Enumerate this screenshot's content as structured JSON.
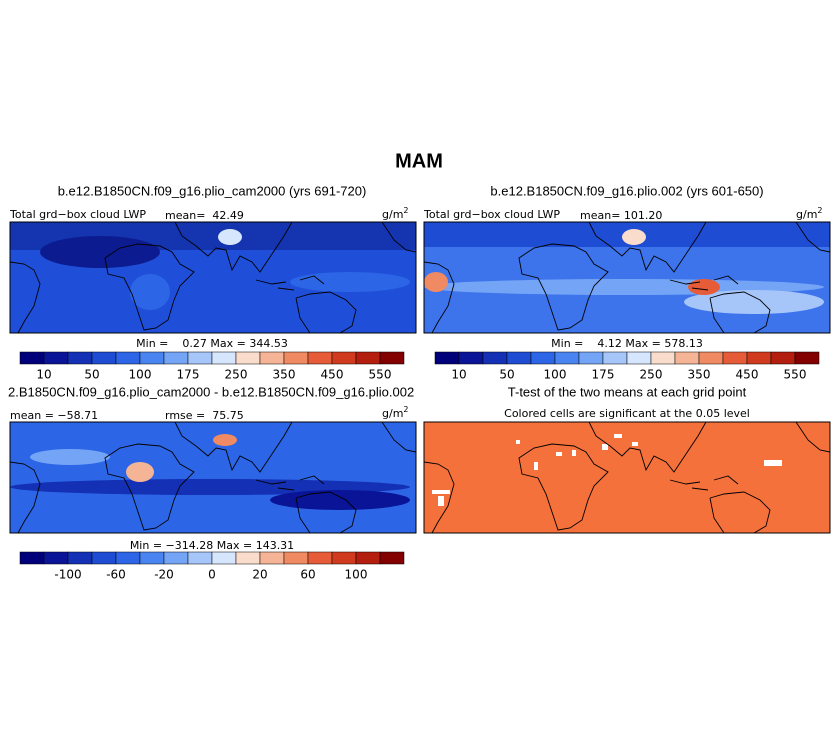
{
  "title": "MAM",
  "panels": [
    {
      "title": "b.e12.B1850CN.f09_g16.plio_cam2000 (yrs 691-720)",
      "variable": "Total grd−box cloud LWP",
      "mean": "mean=  42.49",
      "units": "g/m",
      "units_sup": "2",
      "min_max": "Min =    0.27 Max = 344.53",
      "colorbar": {
        "labels": [
          10,
          50,
          100,
          175,
          250,
          350,
          450,
          550
        ],
        "colors": [
          "#00007a",
          "#0a1496",
          "#1430b4",
          "#1e4cd2",
          "#2c66e6",
          "#4a84f0",
          "#74a4f6",
          "#a6c6fa",
          "#d6e6fc",
          "#fadccc",
          "#f6b496",
          "#f08a62",
          "#e65c38",
          "#d03a1e",
          "#b41e0e",
          "#820000"
        ]
      }
    },
    {
      "title": "b.e12.B1850CN.f09_g16.plio.002 (yrs 601-650)",
      "variable": "Total grd−box cloud LWP",
      "mean": "mean= 101.20",
      "units": "g/m",
      "units_sup": "2",
      "min_max": "Min =    4.12 Max = 578.13",
      "colorbar": {
        "labels": [
          10,
          50,
          100,
          175,
          250,
          350,
          450,
          550
        ],
        "colors": [
          "#00007a",
          "#0a1496",
          "#1430b4",
          "#1e4cd2",
          "#2c66e6",
          "#4a84f0",
          "#74a4f6",
          "#a6c6fa",
          "#d6e6fc",
          "#fadccc",
          "#f6b496",
          "#f08a62",
          "#e65c38",
          "#d03a1e",
          "#b41e0e",
          "#820000"
        ]
      }
    },
    {
      "title": "2.B1850CN.f09_g16.plio_cam2000 - b.e12.B1850CN.f09_g16.plio.002",
      "mean": "mean = −58.71",
      "rmse": "rmse =  75.75",
      "units": "g/m",
      "units_sup": "2",
      "min_max": "Min = −314.28 Max = 143.31",
      "colorbar": {
        "labels": [
          -100,
          -60,
          -20,
          0,
          20,
          60,
          100
        ],
        "colors": [
          "#00007a",
          "#0a1496",
          "#1430b4",
          "#1e4cd2",
          "#2c66e6",
          "#4a84f0",
          "#74a4f6",
          "#a6c6fa",
          "#d6e6fc",
          "#fadccc",
          "#f6b496",
          "#f08a62",
          "#e65c38",
          "#d03a1e",
          "#b41e0e",
          "#820000"
        ]
      }
    },
    {
      "title": "T-test of the two means at each grid point",
      "subtitle": "Colored cells are significant at the 0.05 level"
    }
  ]
}
